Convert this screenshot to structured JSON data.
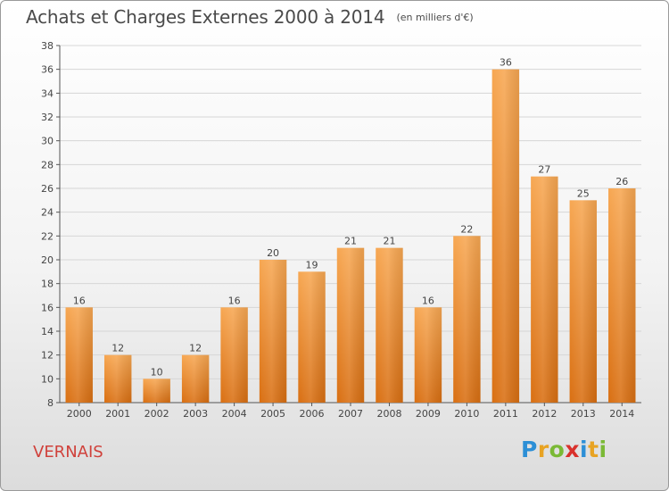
{
  "header": {
    "title": "Achats et Charges Externes 2000 à 2014",
    "unit": "(en milliers d'€)"
  },
  "footer": {
    "commune": "VERNAIS",
    "logo_text": "Proxiti"
  },
  "colors": {
    "bar_top": "#f7a752",
    "bar_bottom": "#d96f12",
    "commune": "#d0413b",
    "axis": "#555555"
  },
  "chart_data": {
    "type": "bar",
    "categories": [
      "2000",
      "2001",
      "2002",
      "2003",
      "2004",
      "2005",
      "2006",
      "2007",
      "2008",
      "2009",
      "2010",
      "2011",
      "2012",
      "2013",
      "2014"
    ],
    "values": [
      16,
      12,
      10,
      12,
      16,
      20,
      19,
      21,
      21,
      16,
      22,
      36,
      27,
      25,
      26
    ],
    "title": "Achats et Charges Externes 2000 à 2014",
    "ylim": [
      8,
      38
    ],
    "yticks": [
      8,
      10,
      12,
      14,
      16,
      18,
      20,
      22,
      24,
      26,
      28,
      30,
      32,
      34,
      36,
      38
    ],
    "grid": true,
    "data_labels": true
  }
}
